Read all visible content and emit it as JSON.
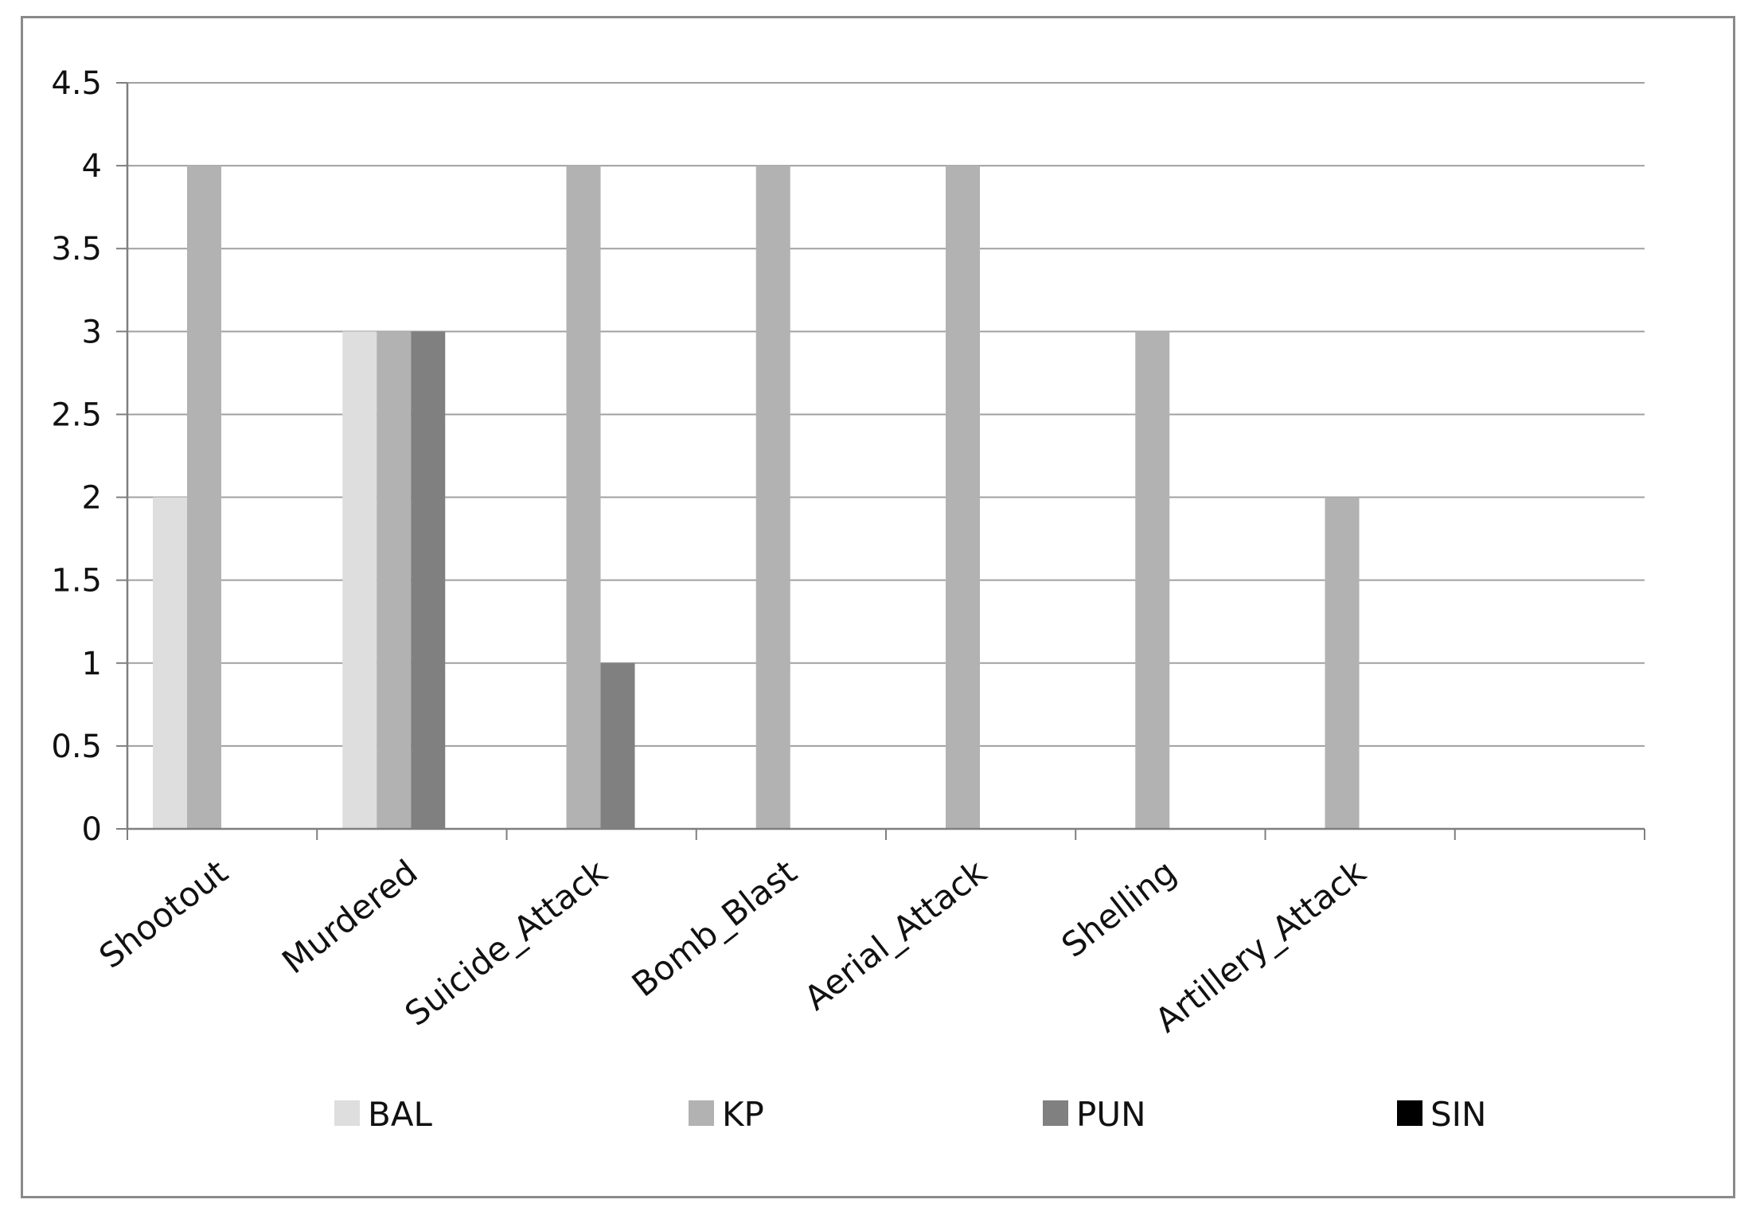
{
  "chart_data": {
    "type": "bar",
    "title": "",
    "xlabel": "",
    "ylabel": "",
    "categories": [
      "Shootout",
      "Murdered",
      "Suicide_Attack",
      "Bomb_Blast",
      "Aerial_Attack",
      "Shelling",
      "Artillery_Attack",
      ""
    ],
    "series": [
      {
        "name": "BAL",
        "color": "#dedede",
        "values": [
          2,
          3,
          0,
          0,
          0,
          0,
          0,
          0
        ]
      },
      {
        "name": "KP",
        "color": "#b2b2b2",
        "values": [
          4,
          3,
          4,
          4,
          4,
          3,
          2,
          0
        ]
      },
      {
        "name": "PUN",
        "color": "#808080",
        "values": [
          0,
          3,
          1,
          0,
          0,
          0,
          0,
          0
        ]
      },
      {
        "name": "SIN",
        "color": "#000000",
        "values": [
          0,
          0,
          0,
          0,
          0,
          0,
          0,
          0
        ]
      }
    ],
    "ylim": [
      0,
      4.5
    ],
    "yticks": [
      "0",
      "0.5",
      "1",
      "1.5",
      "2",
      "2.5",
      "3",
      "3.5",
      "4",
      "4.5"
    ],
    "grid": true,
    "gridline_color": "#a0a0a0",
    "legend_position": "bottom"
  }
}
